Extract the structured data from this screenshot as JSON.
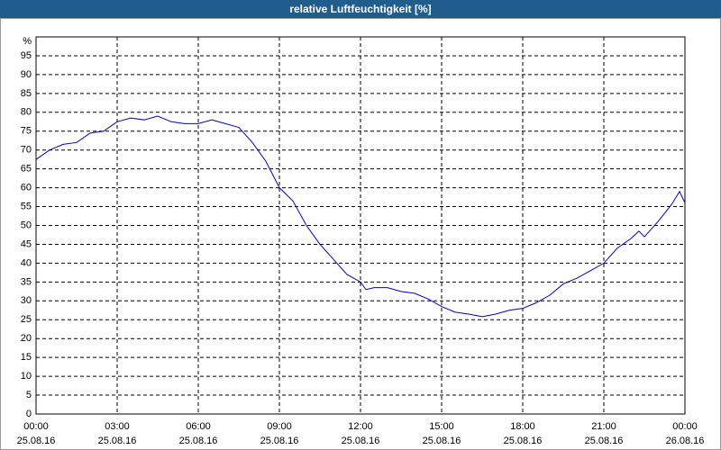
{
  "chart_data": {
    "type": "line",
    "title": "relative Luftfeuchtigkeit [%]",
    "y_label": "%",
    "x": [
      0,
      0.5,
      1,
      1.5,
      2,
      2.5,
      3,
      3.5,
      4,
      4.5,
      5,
      5.5,
      6,
      6.5,
      7,
      7.5,
      8,
      8.5,
      9,
      9.5,
      10,
      10.5,
      11,
      11.5,
      12,
      12.2,
      12.5,
      13,
      13.5,
      14,
      14.5,
      15,
      15.5,
      16,
      16.5,
      17,
      17.5,
      18,
      18.5,
      19,
      19.5,
      20,
      20.5,
      21,
      21.5,
      22,
      22.3,
      22.5,
      23,
      23.5,
      23.8,
      24
    ],
    "series": [
      {
        "name": "relative Luftfeuchtigkeit",
        "color": "#0000cc",
        "values": [
          67.5,
          70,
          71.5,
          72,
          74.5,
          75,
          77.5,
          78.5,
          78,
          79,
          77.5,
          77,
          77,
          78,
          77,
          76,
          72,
          67,
          60,
          56.5,
          50,
          45,
          41,
          37,
          35,
          33,
          33.5,
          33.5,
          32.5,
          32,
          30.5,
          28.5,
          27,
          26.5,
          25.8,
          26.5,
          27.5,
          28,
          29.5,
          31.5,
          34.5,
          36,
          38,
          40,
          44,
          46.5,
          48.5,
          47,
          51,
          55.5,
          59,
          56
        ]
      }
    ],
    "xlim": [
      0,
      24
    ],
    "xticks": [
      {
        "value": 0,
        "label": "00:00"
      },
      {
        "value": 3,
        "label": "03:00"
      },
      {
        "value": 6,
        "label": "06:00"
      },
      {
        "value": 9,
        "label": "09:00"
      },
      {
        "value": 12,
        "label": "12:00"
      },
      {
        "value": 15,
        "label": "15:00"
      },
      {
        "value": 18,
        "label": "18:00"
      },
      {
        "value": 21,
        "label": "21:00"
      },
      {
        "value": 24,
        "label": "00:00"
      }
    ],
    "xtick_dates": [
      "25.08.16",
      "25.08.16",
      "25.08.16",
      "25.08.16",
      "25.08.16",
      "25.08.16",
      "25.08.16",
      "25.08.16",
      "26.08.16"
    ],
    "ylim": [
      0,
      100
    ],
    "yticks": [
      0,
      5,
      10,
      15,
      20,
      25,
      30,
      35,
      40,
      45,
      50,
      55,
      60,
      65,
      70,
      75,
      80,
      85,
      90,
      95
    ],
    "grid": true
  }
}
